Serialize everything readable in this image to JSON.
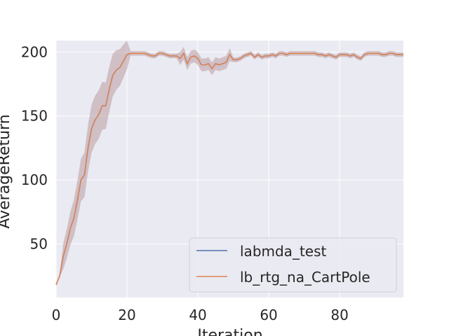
{
  "chart_data": {
    "type": "line",
    "xlabel": "Iteration",
    "ylabel": "AverageReturn",
    "xlim": [
      0,
      98
    ],
    "ylim": [
      8,
      209
    ],
    "xticks": [
      0,
      20,
      40,
      60,
      80
    ],
    "yticks": [
      50,
      100,
      150,
      200
    ],
    "grid": true,
    "legend_position": "bottom-right",
    "colors": {
      "background": "#eaeaf2",
      "grid": "#ffffff",
      "labmda_test": "#4c72b0",
      "lb_rtg_na_CartPole": "#dd8452",
      "band": "#b99aa0"
    },
    "x": [
      0,
      1,
      2,
      3,
      4,
      5,
      6,
      7,
      8,
      9,
      10,
      11,
      12,
      13,
      14,
      15,
      16,
      17,
      18,
      19,
      20,
      21,
      22,
      23,
      24,
      25,
      26,
      27,
      28,
      29,
      30,
      31,
      32,
      33,
      34,
      35,
      36,
      37,
      38,
      39,
      40,
      41,
      42,
      43,
      44,
      45,
      46,
      47,
      48,
      49,
      50,
      51,
      52,
      53,
      54,
      55,
      56,
      57,
      58,
      59,
      60,
      61,
      62,
      63,
      64,
      65,
      66,
      67,
      68,
      69,
      70,
      71,
      72,
      73,
      74,
      75,
      76,
      77,
      78,
      79,
      80,
      81,
      82,
      83,
      84,
      85,
      86,
      87,
      88,
      89,
      90,
      91,
      92,
      93,
      94,
      95,
      96,
      97,
      98
    ],
    "series": [
      {
        "name": "labmda_test",
        "values": [
          18,
          25,
          40,
          50,
          62,
          70,
          84,
          100,
          104,
          125,
          140,
          147,
          151,
          158,
          158,
          171,
          182,
          186,
          188,
          193,
          198,
          199,
          199,
          199,
          199,
          199,
          198,
          197,
          197,
          199,
          199,
          198,
          197,
          197,
          197,
          195,
          199,
          191,
          196,
          197,
          195,
          190,
          190,
          191,
          187,
          191,
          190,
          191,
          192,
          198,
          194,
          194,
          195,
          197,
          198,
          199,
          196,
          198,
          196,
          197,
          197,
          198,
          197,
          199,
          199,
          198,
          199,
          199,
          199,
          199,
          199,
          199,
          199,
          199,
          198,
          198,
          197,
          198,
          197,
          196,
          198,
          198,
          198,
          197,
          198,
          196,
          195,
          198,
          199,
          199,
          199,
          199,
          198,
          198,
          199,
          199,
          198,
          198,
          198
        ]
      },
      {
        "name": "lb_rtg_na_CartPole",
        "values": [
          18,
          25,
          40,
          50,
          62,
          70,
          84,
          100,
          104,
          125,
          140,
          147,
          151,
          158,
          158,
          171,
          182,
          186,
          188,
          193,
          198,
          199,
          199,
          199,
          199,
          199,
          198,
          197,
          197,
          199,
          199,
          198,
          197,
          197,
          197,
          195,
          199,
          191,
          196,
          197,
          195,
          190,
          190,
          191,
          187,
          191,
          190,
          191,
          192,
          198,
          194,
          194,
          195,
          197,
          198,
          199,
          196,
          198,
          196,
          197,
          197,
          198,
          197,
          199,
          199,
          198,
          199,
          199,
          199,
          199,
          199,
          199,
          199,
          199,
          198,
          198,
          197,
          198,
          197,
          196,
          198,
          198,
          198,
          197,
          198,
          196,
          195,
          198,
          199,
          199,
          199,
          199,
          198,
          198,
          199,
          199,
          198,
          198,
          198
        ]
      }
    ]
  }
}
